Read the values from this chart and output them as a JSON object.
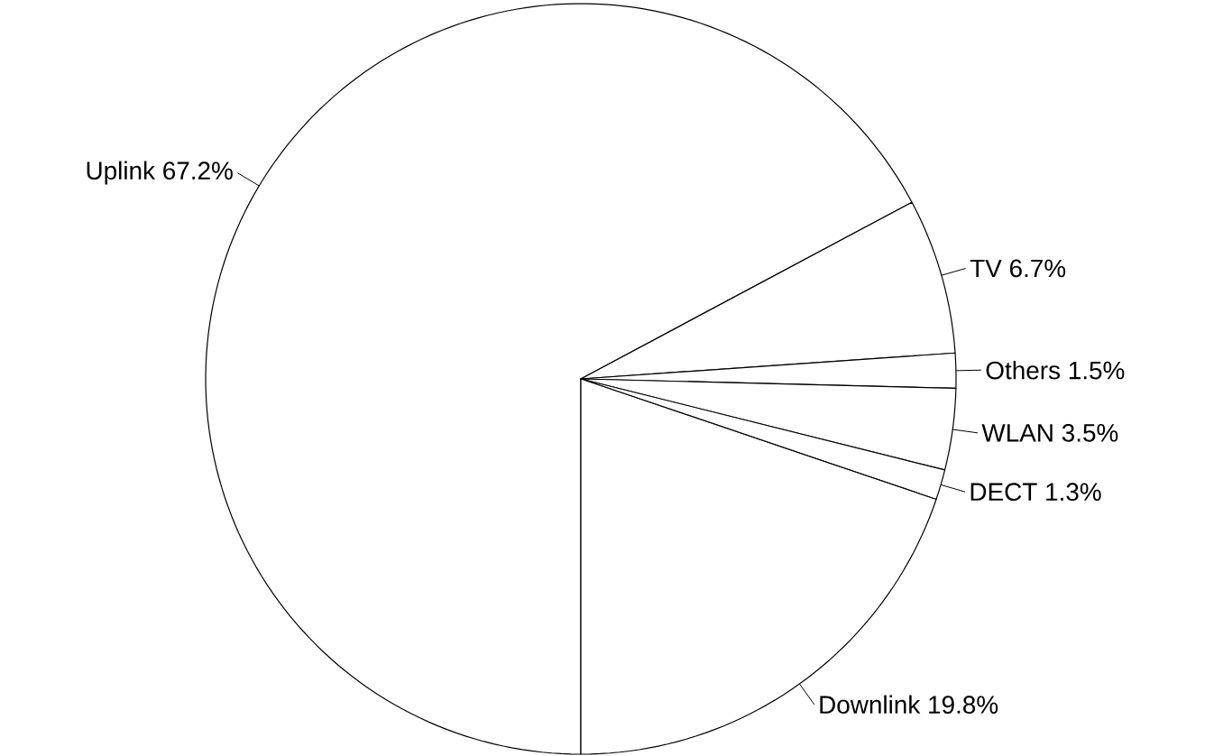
{
  "chart_data": {
    "type": "pie",
    "categories": [
      "Uplink",
      "TV",
      "Others",
      "WLAN",
      "DECT",
      "Downlink"
    ],
    "values": [
      67.2,
      6.7,
      1.5,
      3.5,
      1.3,
      19.8
    ],
    "value_labels": [
      "67.2%",
      "6.7%",
      "1.5%",
      "3.5%",
      "1.3%",
      "19.8%"
    ],
    "colors": [
      "#ffffff",
      "#ffffff",
      "#ffffff",
      "#ffffff",
      "#ffffff",
      "#ffffff"
    ]
  }
}
